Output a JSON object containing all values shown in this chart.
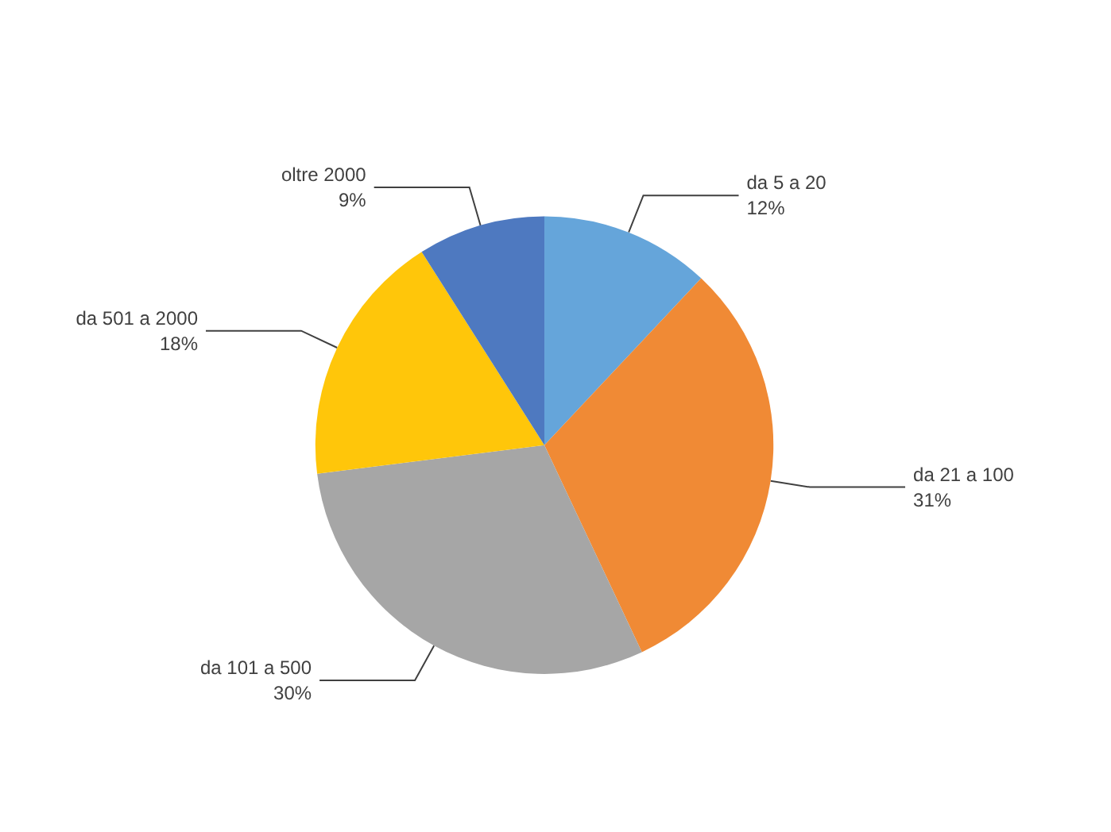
{
  "chart_data": {
    "type": "pie",
    "categories": [
      "da 5 a 20",
      "da 21 a 100",
      "da 101 a 500",
      "da 501 a 2000",
      "oltre 2000"
    ],
    "values": [
      12,
      31,
      30,
      18,
      9
    ],
    "value_labels": [
      "12%",
      "31%",
      "30%",
      "18%",
      "9%"
    ],
    "colors": [
      "#65a5da",
      "#f08a35",
      "#a6a6a6",
      "#ffc60a",
      "#4e79c0"
    ],
    "legend": false
  }
}
